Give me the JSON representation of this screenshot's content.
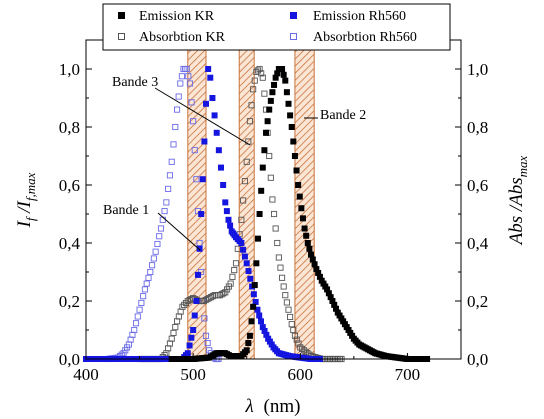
{
  "chart_data": {
    "type": "scatter",
    "xlabel_var": "λ",
    "xlabel_unit": "(nm)",
    "ylabel_left": {
      "base": "I",
      "sub1": "f",
      "mid": " /I",
      "sub2": "f,max"
    },
    "ylabel_right": {
      "base": "Abs /Abs",
      "sub": "max"
    },
    "xlim": [
      400,
      750
    ],
    "ylim": [
      0,
      1.1
    ],
    "xticks": [
      "400",
      "500",
      "600",
      "700"
    ],
    "xtick_values": [
      400,
      500,
      600,
      700
    ],
    "yticks": [
      "0,0",
      "0,2",
      "0,4",
      "0,6",
      "0,8",
      "1,0"
    ],
    "ytick_values": [
      0,
      0.2,
      0.4,
      0.6,
      0.8,
      1.0
    ],
    "legend_position": "top",
    "grid": false,
    "bands": [
      {
        "label": "Bande 1",
        "x_range": [
          495,
          512
        ]
      },
      {
        "label": "Bande 3",
        "x_range": [
          543,
          557
        ]
      },
      {
        "label": "Bande 2",
        "x_range": [
          595,
          613
        ]
      }
    ],
    "series": [
      {
        "name": "Emission KR",
        "marker": "filled-square",
        "color": "#000000",
        "x": [
          480,
          500,
          515,
          522,
          526,
          530,
          535,
          540,
          545,
          550,
          553,
          556,
          559,
          562,
          565,
          568,
          571,
          574,
          577,
          580,
          583,
          586,
          589,
          592,
          595,
          598,
          601,
          604,
          607,
          610,
          615,
          620,
          625,
          630,
          635,
          640,
          645,
          650,
          655,
          660,
          665,
          670,
          680,
          690,
          700,
          710,
          720
        ],
        "y": [
          0,
          0,
          0.005,
          0.02,
          0.02,
          0.02,
          0.01,
          0.01,
          0.01,
          0.03,
          0.08,
          0.18,
          0.33,
          0.5,
          0.66,
          0.78,
          0.86,
          0.92,
          0.97,
          1.0,
          1.0,
          0.96,
          0.88,
          0.8,
          0.7,
          0.6,
          0.52,
          0.45,
          0.4,
          0.36,
          0.31,
          0.27,
          0.24,
          0.2,
          0.16,
          0.13,
          0.1,
          0.07,
          0.05,
          0.04,
          0.03,
          0.02,
          0.01,
          0.005,
          0,
          0,
          0
        ]
      },
      {
        "name": "Emission Rh560",
        "marker": "filled-square",
        "color": "#1515e0",
        "x": [
          400,
          450,
          490,
          495,
          500,
          503,
          506,
          509,
          512,
          514,
          516,
          518,
          520,
          522,
          524,
          526,
          528,
          530,
          533,
          536,
          540,
          545,
          550,
          555,
          560,
          565,
          570,
          575,
          580,
          590,
          600,
          610,
          620
        ],
        "y": [
          0,
          0,
          0,
          0.02,
          0.1,
          0.2,
          0.38,
          0.62,
          0.88,
          1.0,
          0.97,
          0.9,
          0.84,
          0.78,
          0.72,
          0.66,
          0.6,
          0.54,
          0.48,
          0.44,
          0.42,
          0.4,
          0.33,
          0.25,
          0.17,
          0.11,
          0.07,
          0.04,
          0.02,
          0.01,
          0.005,
          0,
          0
        ]
      },
      {
        "name": "Absorbtion KR",
        "marker": "open-square",
        "color": "#555555",
        "x": [
          450,
          460,
          470,
          475,
          480,
          485,
          490,
          495,
          500,
          505,
          510,
          515,
          520,
          525,
          530,
          535,
          540,
          545,
          550,
          553,
          556,
          559,
          562,
          565,
          568,
          571,
          574,
          577,
          580,
          583,
          586,
          589,
          592,
          595,
          600,
          610,
          620,
          640
        ],
        "y": [
          0,
          0,
          0,
          0.02,
          0.07,
          0.13,
          0.18,
          0.2,
          0.21,
          0.2,
          0.2,
          0.21,
          0.22,
          0.22,
          0.23,
          0.26,
          0.33,
          0.48,
          0.68,
          0.82,
          0.93,
          0.99,
          1.0,
          0.97,
          0.86,
          0.7,
          0.55,
          0.45,
          0.35,
          0.28,
          0.22,
          0.17,
          0.12,
          0.08,
          0.04,
          0.01,
          0,
          0
        ]
      },
      {
        "name": "Absorbtion Rh560",
        "marker": "open-square",
        "color": "#6a6ae8",
        "x": [
          420,
          430,
          435,
          440,
          445,
          450,
          455,
          460,
          465,
          470,
          475,
          480,
          485,
          488,
          491,
          494,
          497,
          500,
          503,
          506,
          509,
          512,
          515,
          518,
          521,
          525
        ],
        "y": [
          0,
          0.005,
          0.02,
          0.05,
          0.1,
          0.17,
          0.24,
          0.3,
          0.37,
          0.45,
          0.54,
          0.68,
          0.86,
          0.95,
          1.0,
          1.0,
          0.95,
          0.82,
          0.62,
          0.4,
          0.2,
          0.08,
          0.03,
          0.01,
          0,
          0
        ]
      }
    ]
  }
}
